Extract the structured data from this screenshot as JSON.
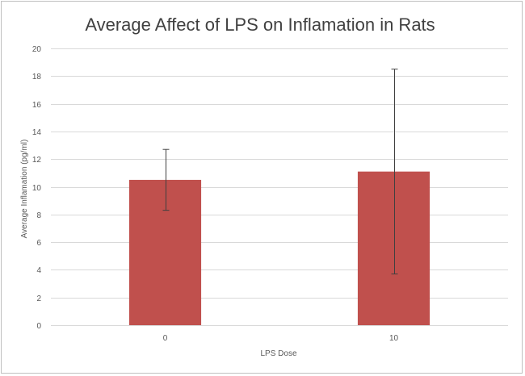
{
  "chart_data": {
    "type": "bar",
    "title": "Average Affect of LPS on Inflamation in Rats",
    "xlabel": "LPS Dose",
    "ylabel": "Average Inflamation (pg/ml)",
    "categories": [
      "0",
      "10"
    ],
    "series": [
      {
        "values": [
          10.5,
          11.1
        ],
        "error_bars": [
          2.2,
          7.4
        ],
        "color": "#c0504d"
      }
    ],
    "ylim": [
      0,
      20
    ],
    "yticks": [
      0,
      2,
      4,
      6,
      8,
      10,
      12,
      14,
      16,
      18,
      20
    ],
    "grid": true,
    "gridline_color": "#d9d9d9",
    "error_bar_color": "#404040",
    "legend": "none"
  }
}
